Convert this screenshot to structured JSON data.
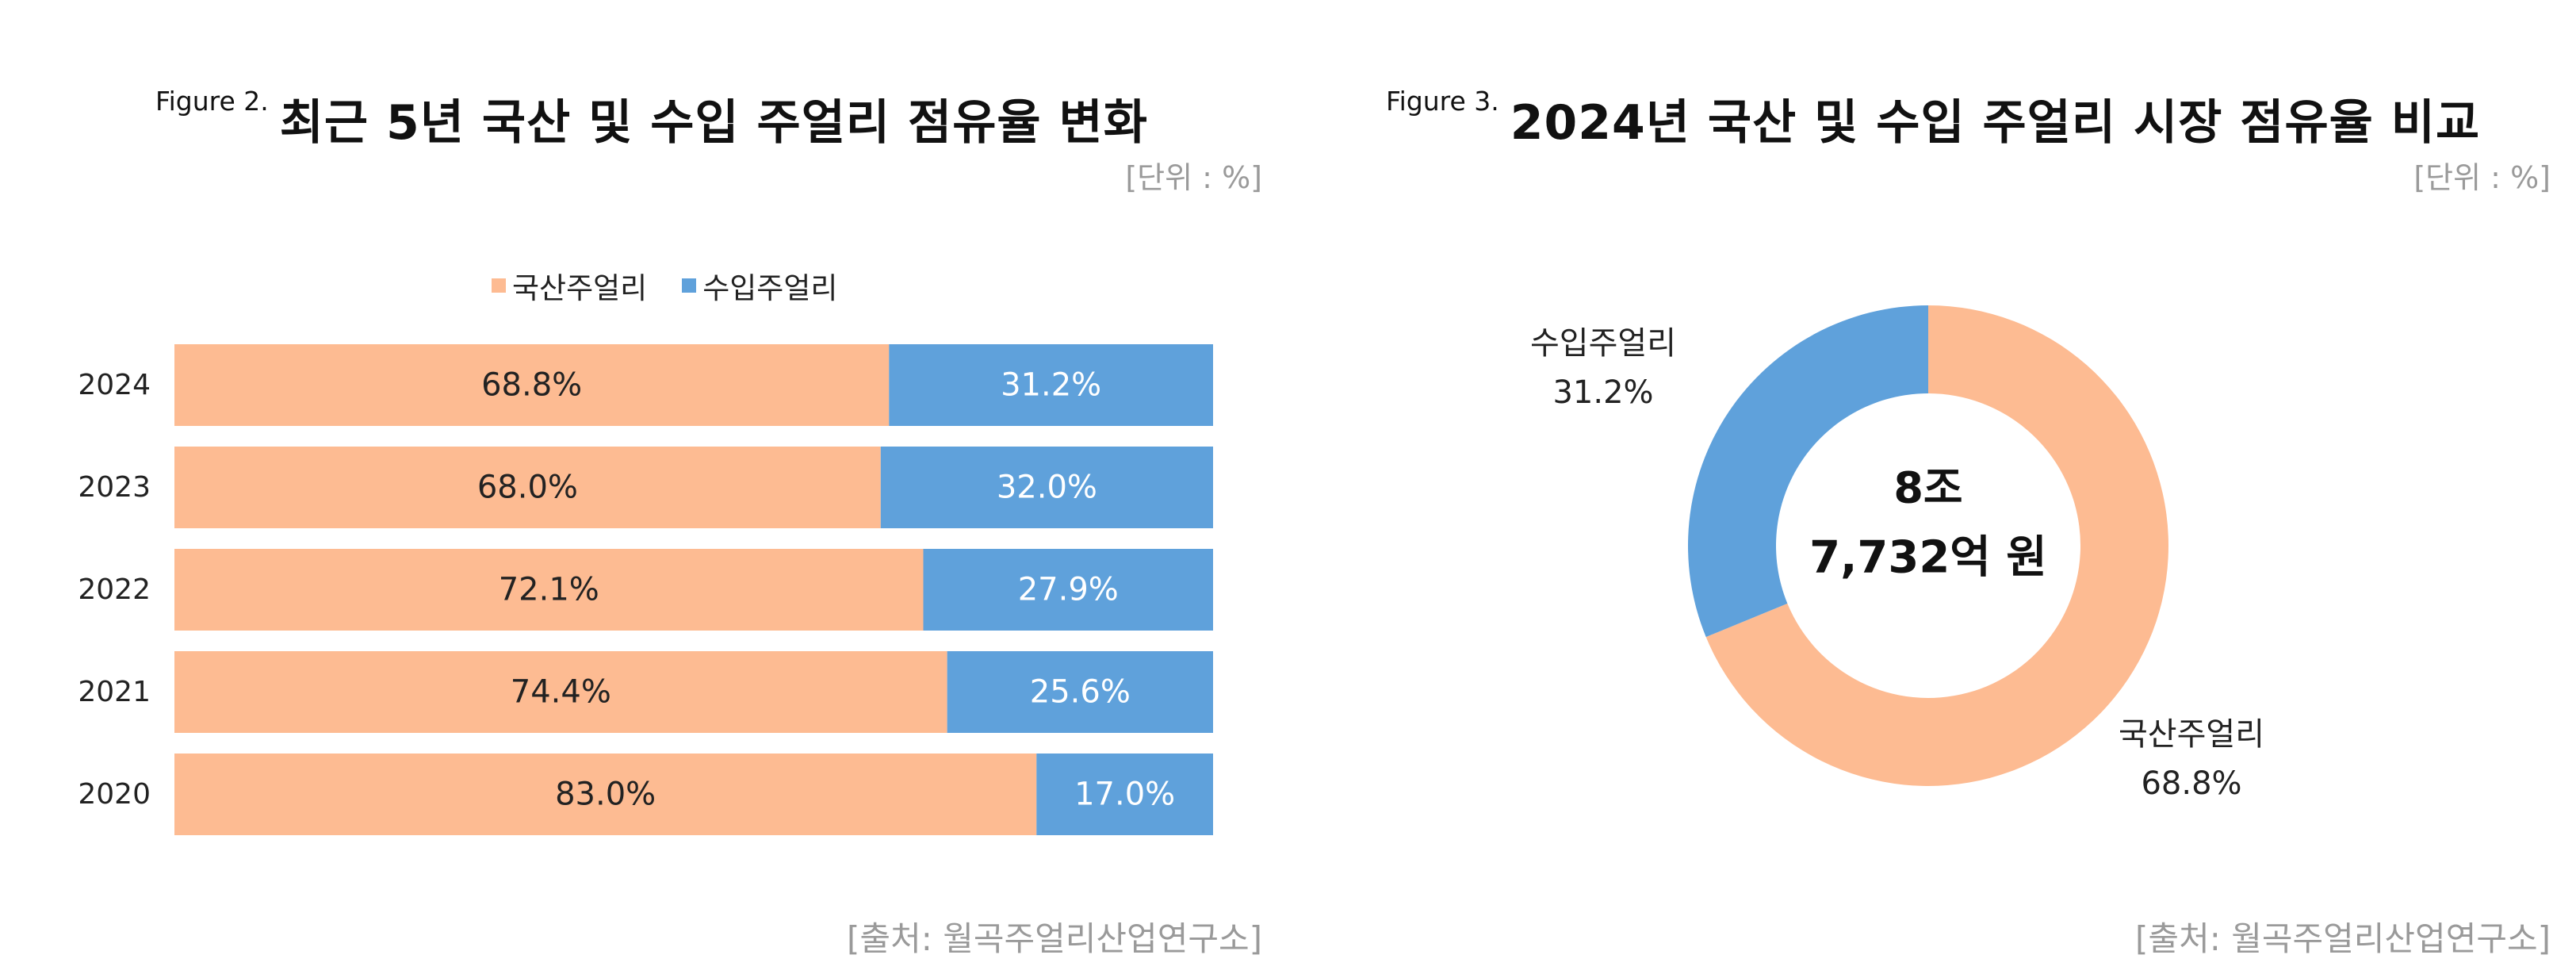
{
  "colors": {
    "domestic": "#fdbb92",
    "imported": "#5fa1db"
  },
  "left_panel": {
    "figure_label": "Figure 2.",
    "title": "최근 5년 국산 및 수입 주얼리 점유율 변화",
    "unit": "[단위 : %]",
    "source": "[출처: 월곡주얼리산업연구소]"
  },
  "right_panel": {
    "figure_label": "Figure 3.",
    "title": "2024년 국산 및 수입 주얼리 시장 점유율 비교",
    "unit": "[단위 : %]",
    "source": "[출처: 월곡주얼리산업연구소]"
  },
  "chart_data": [
    {
      "type": "bar",
      "orientation": "horizontal",
      "stacked": true,
      "categories": [
        "2024",
        "2023",
        "2022",
        "2021",
        "2020"
      ],
      "series": [
        {
          "name": "국산주얼리",
          "values": [
            68.8,
            68.0,
            72.1,
            74.4,
            83.0
          ],
          "labels": [
            "68.8%",
            "68.0%",
            "72.1%",
            "74.4%",
            "83.0%"
          ]
        },
        {
          "name": "수입주얼리",
          "values": [
            31.2,
            32.0,
            27.9,
            25.6,
            17.0
          ],
          "labels": [
            "31.2%",
            "32.0%",
            "27.9%",
            "25.6%",
            "17.0%"
          ]
        }
      ],
      "xlim": [
        0,
        100
      ],
      "legend": "top",
      "grid": false
    },
    {
      "type": "pie",
      "donut": true,
      "slices": [
        {
          "name": "국산주얼리",
          "value": 68.8,
          "label": "68.8%"
        },
        {
          "name": "수입주얼리",
          "value": 31.2,
          "label": "31.2%"
        }
      ],
      "center_text": [
        "8조",
        "7,732억 원"
      ]
    }
  ]
}
